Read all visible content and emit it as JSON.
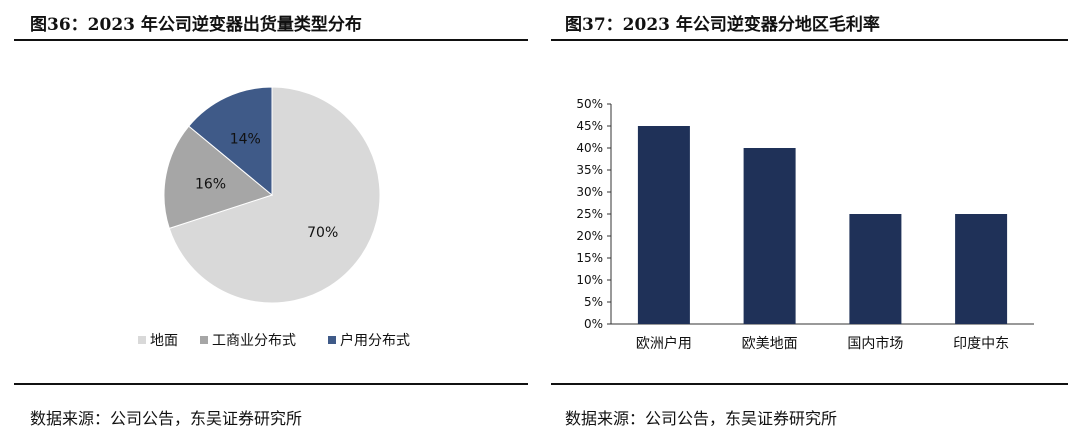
{
  "left": {
    "title": "图36：2023 年公司逆变器出货量类型分布",
    "source": "数据来源：公司公告，东吴证券研究所"
  },
  "right": {
    "title": "图37：2023 年公司逆变器分地区毛利率",
    "source": "数据来源：公司公告，东吴证券研究所"
  },
  "chart_data": [
    {
      "type": "pie",
      "categories": [
        "地面",
        "工商业分布式",
        "户用分布式"
      ],
      "values": [
        70,
        16,
        14
      ],
      "labels": [
        "70%",
        "16%",
        "14%"
      ],
      "colors": [
        "#d9d9d9",
        "#a6a6a6",
        "#3f5a88"
      ],
      "legend_position": "bottom",
      "title": "",
      "xlabel": "",
      "ylabel": ""
    },
    {
      "type": "bar",
      "categories": [
        "欧洲户用",
        "欧美地面",
        "国内市场",
        "印度中东"
      ],
      "values": [
        45,
        40,
        25,
        25
      ],
      "color": "#1f3158",
      "ylim": [
        0,
        50
      ],
      "ytick_step": 5,
      "ytick_labels": [
        "0%",
        "5%",
        "10%",
        "15%",
        "20%",
        "25%",
        "30%",
        "35%",
        "40%",
        "45%",
        "50%"
      ],
      "grid": false,
      "title": "",
      "xlabel": "",
      "ylabel": ""
    }
  ]
}
